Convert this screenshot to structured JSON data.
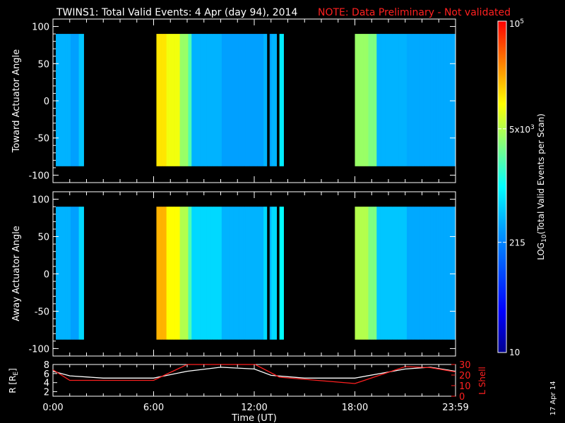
{
  "header": {
    "title": "TWINS1: Total Valid Events:  4 Apr (day  94), 2014",
    "note": "NOTE: Data Preliminary - Not validated",
    "note_color": "#ff2020"
  },
  "footer": {
    "plot_date": "17 Apr 14"
  },
  "colors": {
    "background": "#000000",
    "axes": "#ffffff",
    "orbit_r": "#ffffff",
    "orbit_lshell": "#ff2020"
  },
  "chart_data": [
    {
      "type": "heatmap",
      "panel": "toward",
      "ylabel": "Toward Actuator Angle",
      "ylim": [
        -110,
        110
      ],
      "yticks": [
        100,
        50,
        0,
        -50,
        -100
      ],
      "xlim_hours": [
        0,
        24
      ],
      "angle_range": [
        -88,
        90
      ],
      "scale": "log",
      "data_intervals": [
        {
          "start": "00:10",
          "end": "01:50"
        },
        {
          "start": "06:10",
          "end": "12:45"
        },
        {
          "start": "12:55",
          "end": "13:20"
        },
        {
          "start": "13:30",
          "end": "13:45"
        },
        {
          "start": "18:00",
          "end": "23:59"
        }
      ],
      "time_profile_log10": [
        [
          "00:10",
          2.6
        ],
        [
          "01:00",
          2.5
        ],
        [
          "01:30",
          2.7
        ],
        [
          "01:45",
          3.0
        ],
        [
          "06:10",
          4.1
        ],
        [
          "06:45",
          3.95
        ],
        [
          "07:30",
          3.6
        ],
        [
          "08:00",
          3.3
        ],
        [
          "08:15",
          2.6
        ],
        [
          "10:00",
          2.5
        ],
        [
          "12:30",
          2.6
        ],
        [
          "12:50",
          2.5
        ],
        [
          "13:00",
          2.6
        ],
        [
          "13:30",
          2.9
        ],
        [
          "18:00",
          3.6
        ],
        [
          "18:45",
          3.5
        ],
        [
          "19:15",
          2.6
        ],
        [
          "21:00",
          2.55
        ],
        [
          "23:59",
          2.6
        ]
      ]
    },
    {
      "type": "heatmap",
      "panel": "away",
      "ylabel": "Away Actuator Angle",
      "ylim": [
        -110,
        110
      ],
      "yticks": [
        100,
        50,
        0,
        -50,
        -100
      ],
      "xlim_hours": [
        0,
        24
      ],
      "angle_range": [
        -88,
        90
      ],
      "scale": "log",
      "data_intervals": [
        {
          "start": "00:10",
          "end": "01:50"
        },
        {
          "start": "06:10",
          "end": "12:45"
        },
        {
          "start": "12:55",
          "end": "13:20"
        },
        {
          "start": "13:30",
          "end": "13:45"
        },
        {
          "start": "18:00",
          "end": "23:59"
        }
      ],
      "time_profile_log10": [
        [
          "00:10",
          2.6
        ],
        [
          "01:00",
          2.5
        ],
        [
          "01:30",
          2.8
        ],
        [
          "01:45",
          3.1
        ],
        [
          "06:10",
          4.3
        ],
        [
          "06:45",
          4.0
        ],
        [
          "07:30",
          3.7
        ],
        [
          "08:00",
          3.3
        ],
        [
          "08:15",
          2.8
        ],
        [
          "10:00",
          2.6
        ],
        [
          "12:30",
          2.8
        ],
        [
          "12:50",
          2.6
        ],
        [
          "13:00",
          2.8
        ],
        [
          "13:30",
          3.0
        ],
        [
          "18:00",
          3.7
        ],
        [
          "18:45",
          3.5
        ],
        [
          "19:15",
          2.7
        ],
        [
          "21:00",
          2.55
        ],
        [
          "23:59",
          2.6
        ]
      ]
    },
    {
      "type": "line",
      "panel": "orbit",
      "xlabel": "Time (UT)",
      "xticks": [
        "0:00",
        "6:00",
        "12:00",
        "18:00",
        "23:59"
      ],
      "xlim_hours": [
        0,
        24
      ],
      "ylabel_left": "R [R",
      "ylabel_left_sub": "E",
      "ylabel_left_end": "]",
      "yticks_left": [
        2,
        4,
        6,
        8
      ],
      "ylim_left": [
        1,
        8
      ],
      "ylabel_right": "L Shell",
      "yticks_right": [
        0,
        10,
        20,
        30
      ],
      "ylim_right": [
        0,
        30
      ],
      "series": [
        {
          "axis": "left",
          "color": "#ffffff",
          "x": [
            0,
            1,
            3,
            6,
            8,
            10,
            12,
            13,
            15,
            18,
            21,
            22.5,
            23.99
          ],
          "y": [
            6.5,
            5.5,
            5.0,
            5.0,
            6.5,
            7.4,
            7.0,
            5.6,
            5.0,
            5.0,
            7.0,
            7.4,
            6.5
          ]
        },
        {
          "axis": "right",
          "color": "#ff2020",
          "x": [
            0,
            1,
            3,
            6,
            8,
            8.2,
            11.95,
            12.05,
            13.5,
            18,
            21,
            22.5,
            23.99
          ],
          "y": [
            25,
            15,
            15,
            15,
            30,
            30,
            30,
            30,
            18,
            12,
            28,
            27,
            23
          ]
        }
      ]
    }
  ],
  "colorbar": {
    "label": "LOG",
    "label_sub": "10",
    "label_end": "(Total Valid Events per Scan)",
    "scale": "log",
    "range_log10": [
      1,
      5
    ],
    "ticks": [
      {
        "base": "10",
        "exp": "5",
        "log10": 5.0
      },
      {
        "base": "5x10",
        "exp": "3",
        "log10": 3.7
      },
      {
        "base": "215",
        "exp": "",
        "log10": 2.33
      },
      {
        "base": "10",
        "exp": "",
        "log10": 1.0
      }
    ]
  }
}
